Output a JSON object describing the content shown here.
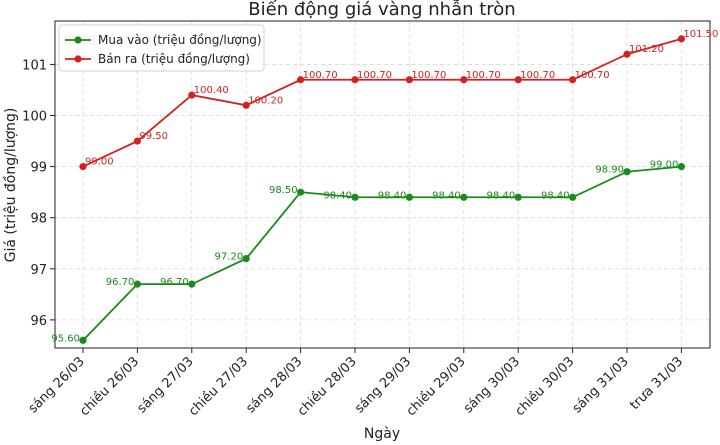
{
  "chart_data": {
    "type": "line",
    "title": "Biến động giá vàng nhẫn tròn",
    "xlabel": "Ngày",
    "ylabel": "Giá (triệu đồng/lượng)",
    "categories": [
      "sáng 26/03",
      "chiều 26/03",
      "sáng 27/03",
      "chiều 27/03",
      "sáng 28/03",
      "chiều 28/03",
      "sáng 29/03",
      "chiều 29/03",
      "sáng 30/03",
      "chiều 30/03",
      "sáng 31/03",
      "trưa 31/03"
    ],
    "ylim": [
      95.45,
      101.85
    ],
    "yticks": [
      96,
      97,
      98,
      99,
      100,
      101
    ],
    "grid": true,
    "legend_position": "top-left",
    "series": [
      {
        "name": "Mua vào (triệu đồng/lượng)",
        "color": "#1a8a1a",
        "values": [
          95.6,
          96.7,
          96.7,
          97.2,
          98.5,
          98.4,
          98.4,
          98.4,
          98.4,
          98.4,
          98.9,
          99.0
        ],
        "labels": [
          "95.60",
          "96.70",
          "96.70",
          "97.20",
          "98.50",
          "98.40",
          "98.40",
          "98.40",
          "98.40",
          "98.40",
          "98.90",
          "99.00"
        ]
      },
      {
        "name": "Bán ra (triệu đồng/lượng)",
        "color": "#d62020",
        "values": [
          99.0,
          99.5,
          100.4,
          100.2,
          100.7,
          100.7,
          100.7,
          100.7,
          100.7,
          100.7,
          101.2,
          101.5
        ],
        "labels": [
          "99.00",
          "99.50",
          "100.40",
          "100.20",
          "100.70",
          "100.70",
          "100.70",
          "100.70",
          "100.70",
          "100.70",
          "101.20",
          "101.50"
        ]
      }
    ]
  }
}
